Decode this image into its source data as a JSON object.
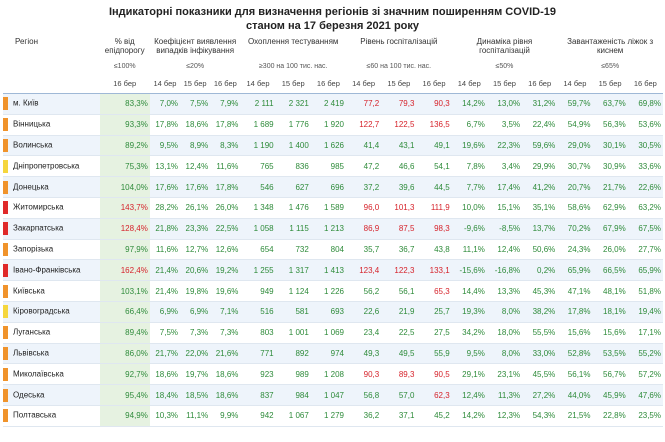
{
  "header": {
    "title": [
      "Індикаторні показники для визначення регіонів зі значним поширенням COVID-19",
      "станом на 17 березня 2021 року"
    ]
  },
  "table": {
    "columns": [
      {
        "label": "Регіон"
      },
      {
        "label": "% від епідпорогу",
        "threshold": "≤100%",
        "dates": [
          "16 бер"
        ]
      },
      {
        "label": "Коефіцієнт виявлення випадків інфікування",
        "threshold": "≤20%",
        "dates": [
          "14 бер",
          "15 бер",
          "16 бер"
        ]
      },
      {
        "label": "Охоплення тестуванням",
        "threshold": "≥300 на 100 тис. нас.",
        "dates": [
          "14 бер",
          "15 бер",
          "16 бер"
        ]
      },
      {
        "label": "Рівень госпіталізацій",
        "threshold": "≤60 на 100 тис. нас.",
        "dates": [
          "14 бер",
          "15 бер",
          "16 бер"
        ]
      },
      {
        "label": "Динаміка рівня госпіталізацій",
        "threshold": "≤50%",
        "dates": [
          "14 бер",
          "15 бер",
          "16 бер"
        ]
      },
      {
        "label": "Завантаженість ліжок з киснем",
        "threshold": "≤65%",
        "dates": [
          "14 бер",
          "15 бер",
          "16 бер"
        ]
      }
    ],
    "rows": [
      {
        "region": "м. Київ",
        "marker": "#f0932b",
        "red": [
          7,
          8,
          9
        ],
        "cells": [
          "83,3%",
          "7,0%",
          "7,5%",
          "7,9%",
          "2 111",
          "2 321",
          "2 419",
          "77,2",
          "79,3",
          "90,3",
          "14,2%",
          "13,0%",
          "31,2%",
          "59,7%",
          "63,7%",
          "69,8%"
        ]
      },
      {
        "region": "Вінницька",
        "marker": "#f0932b",
        "red": [
          7,
          8,
          9
        ],
        "cells": [
          "93,3%",
          "17,8%",
          "18,6%",
          "17,8%",
          "1 689",
          "1 776",
          "1 920",
          "122,7",
          "122,5",
          "136,5",
          "6,7%",
          "3,5%",
          "22,4%",
          "54,9%",
          "56,3%",
          "53,6%"
        ]
      },
      {
        "region": "Волинська",
        "marker": "#f0932b",
        "red": [],
        "cells": [
          "89,2%",
          "9,5%",
          "8,9%",
          "8,3%",
          "1 190",
          "1 400",
          "1 626",
          "41,4",
          "43,1",
          "49,1",
          "19,6%",
          "22,3%",
          "59,6%",
          "29,0%",
          "30,1%",
          "30,5%"
        ]
      },
      {
        "region": "Дніпропетровська",
        "marker": "#f5d63d",
        "red": [],
        "cells": [
          "75,3%",
          "13,1%",
          "12,4%",
          "11,6%",
          "765",
          "836",
          "985",
          "47,2",
          "46,6",
          "54,1",
          "7,8%",
          "3,4%",
          "29,9%",
          "30,7%",
          "30,9%",
          "33,6%"
        ]
      },
      {
        "region": "Донецька",
        "marker": "#f0932b",
        "red": [],
        "cells": [
          "104,0%",
          "17,6%",
          "17,6%",
          "17,8%",
          "546",
          "627",
          "696",
          "37,2",
          "39,6",
          "44,5",
          "7,7%",
          "17,4%",
          "41,2%",
          "20,7%",
          "21,7%",
          "22,6%"
        ]
      },
      {
        "region": "Житомирська",
        "marker": "#e02a2a",
        "red": [
          0,
          7,
          8,
          9
        ],
        "cells": [
          "143,7%",
          "28,2%",
          "26,1%",
          "26,0%",
          "1 348",
          "1 476",
          "1 589",
          "96,0",
          "101,3",
          "111,9",
          "10,0%",
          "15,1%",
          "35,1%",
          "58,6%",
          "62,9%",
          "63,2%"
        ]
      },
      {
        "region": "Закарпатська",
        "marker": "#e02a2a",
        "red": [
          0,
          7,
          8,
          9
        ],
        "cells": [
          "128,4%",
          "21,8%",
          "23,3%",
          "22,5%",
          "1 058",
          "1 115",
          "1 213",
          "86,9",
          "87,5",
          "98,3",
          "-9,6%",
          "-8,5%",
          "13,7%",
          "70,2%",
          "67,9%",
          "67,5%"
        ]
      },
      {
        "region": "Запорізька",
        "marker": "#f0932b",
        "red": [],
        "cells": [
          "97,9%",
          "11,6%",
          "12,7%",
          "12,6%",
          "654",
          "732",
          "804",
          "35,7",
          "36,7",
          "43,8",
          "11,1%",
          "12,4%",
          "50,6%",
          "24,3%",
          "26,0%",
          "27,7%"
        ]
      },
      {
        "region": "Івано-Франківська",
        "marker": "#e02a2a",
        "red": [
          0,
          7,
          8,
          9
        ],
        "cells": [
          "162,4%",
          "21,4%",
          "20,6%",
          "19,2%",
          "1 255",
          "1 317",
          "1 413",
          "123,4",
          "122,3",
          "133,1",
          "-15,6%",
          "-16,8%",
          "0,2%",
          "65,9%",
          "66,5%",
          "65,9%"
        ]
      },
      {
        "region": "Київська",
        "marker": "#f0932b",
        "red": [
          9
        ],
        "cells": [
          "103,1%",
          "21,4%",
          "19,8%",
          "19,6%",
          "949",
          "1 124",
          "1 226",
          "56,2",
          "56,1",
          "65,3",
          "14,4%",
          "13,3%",
          "45,3%",
          "47,1%",
          "48,1%",
          "51,8%"
        ]
      },
      {
        "region": "Кіровоградська",
        "marker": "#f5d63d",
        "red": [],
        "cells": [
          "66,4%",
          "6,9%",
          "6,9%",
          "7,1%",
          "516",
          "581",
          "693",
          "22,6",
          "21,9",
          "25,7",
          "19,3%",
          "8,0%",
          "38,2%",
          "17,8%",
          "18,1%",
          "19,4%"
        ]
      },
      {
        "region": "Луганська",
        "marker": "#f0932b",
        "red": [],
        "cells": [
          "89,4%",
          "7,5%",
          "7,3%",
          "7,3%",
          "803",
          "1 001",
          "1 069",
          "23,4",
          "22,5",
          "27,5",
          "34,2%",
          "18,0%",
          "55,5%",
          "15,6%",
          "15,6%",
          "17,1%"
        ]
      },
      {
        "region": "Львівська",
        "marker": "#f0932b",
        "red": [],
        "cells": [
          "86,0%",
          "21,7%",
          "22,0%",
          "21,6%",
          "771",
          "892",
          "974",
          "49,3",
          "49,5",
          "55,9",
          "9,5%",
          "8,0%",
          "33,0%",
          "52,8%",
          "53,5%",
          "55,2%"
        ]
      },
      {
        "region": "Миколаївська",
        "marker": "#f0932b",
        "red": [
          7,
          8,
          9
        ],
        "cells": [
          "92,7%",
          "18,6%",
          "19,7%",
          "18,6%",
          "923",
          "989",
          "1 208",
          "90,3",
          "89,3",
          "90,5",
          "29,1%",
          "23,1%",
          "45,5%",
          "56,1%",
          "56,7%",
          "57,2%"
        ]
      },
      {
        "region": "Одеська",
        "marker": "#f0932b",
        "red": [
          9
        ],
        "cells": [
          "95,4%",
          "18,4%",
          "18,5%",
          "18,6%",
          "837",
          "984",
          "1 047",
          "56,8",
          "57,0",
          "62,3",
          "12,4%",
          "11,3%",
          "27,2%",
          "44,0%",
          "45,9%",
          "47,6%"
        ]
      },
      {
        "region": "Полтавська",
        "marker": "#f0932b",
        "red": [],
        "cells": [
          "94,9%",
          "10,3%",
          "11,1%",
          "9,9%",
          "942",
          "1 067",
          "1 279",
          "36,2",
          "37,1",
          "45,2",
          "14,2%",
          "12,3%",
          "54,3%",
          "21,5%",
          "22,8%",
          "23,5%"
        ]
      }
    ]
  }
}
